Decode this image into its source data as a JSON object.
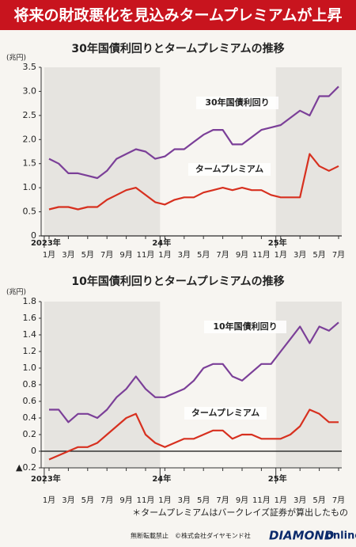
{
  "header": {
    "title": "将来の財政悪化を見込みタームプレミアムが上昇"
  },
  "chart_data": [
    {
      "type": "line",
      "title": "30年国債利回りとタームプレミアムの推移",
      "y_label": "(兆円)",
      "x": [
        "2023-01",
        "2023-02",
        "2023-03",
        "2023-04",
        "2023-05",
        "2023-06",
        "2023-07",
        "2023-08",
        "2023-09",
        "2023-10",
        "2023-11",
        "2023-12",
        "2024-01",
        "2024-02",
        "2024-03",
        "2024-04",
        "2024-05",
        "2024-06",
        "2024-07",
        "2024-08",
        "2024-09",
        "2024-10",
        "2024-11",
        "2024-12",
        "2025-01",
        "2025-02",
        "2025-03",
        "2025-04",
        "2025-05",
        "2025-06",
        "2025-07"
      ],
      "series": [
        {
          "name": "30年国債利回り",
          "color": "#7b3f98",
          "values": [
            1.6,
            1.5,
            1.3,
            1.3,
            1.25,
            1.2,
            1.35,
            1.6,
            1.7,
            1.8,
            1.75,
            1.6,
            1.65,
            1.8,
            1.8,
            1.95,
            2.1,
            2.2,
            2.2,
            1.9,
            1.9,
            2.05,
            2.2,
            2.25,
            2.3,
            2.45,
            2.6,
            2.5,
            2.9,
            2.9,
            3.1
          ]
        },
        {
          "name": "タームプレミアム",
          "color": "#d7301f",
          "values": [
            0.55,
            0.6,
            0.6,
            0.55,
            0.6,
            0.6,
            0.75,
            0.85,
            0.95,
            1.0,
            0.85,
            0.7,
            0.65,
            0.75,
            0.8,
            0.8,
            0.9,
            0.95,
            1.0,
            0.95,
            1.0,
            0.95,
            0.95,
            0.85,
            0.8,
            0.8,
            0.8,
            1.7,
            1.45,
            1.35,
            1.45
          ]
        }
      ],
      "ylim": [
        0,
        3.5
      ],
      "yticks": [
        {
          "value": 3.5,
          "label": "3.5"
        },
        {
          "value": 3,
          "label": "3.0"
        },
        {
          "value": 2.5,
          "label": "2.5"
        },
        {
          "value": 2,
          "label": "2.0"
        },
        {
          "value": 1.5,
          "label": "1.5"
        },
        {
          "value": 1,
          "label": "1.0"
        },
        {
          "value": 0.5,
          "label": "0.5"
        },
        0
      ],
      "xticks": [
        {
          "value": "2023-01",
          "label": "1月"
        },
        {
          "value": "2023-03",
          "label": "3月"
        },
        {
          "value": "2023-05",
          "label": "5月"
        },
        {
          "value": "2023-07",
          "label": "7月"
        },
        {
          "value": "2023-09",
          "label": "9月"
        },
        {
          "value": "2023-11",
          "label": "11月"
        },
        {
          "value": "2024-01",
          "label": "1月"
        },
        {
          "value": "2024-03",
          "label": "3月"
        },
        {
          "value": "2024-05",
          "label": "5月"
        },
        {
          "value": "2024-07",
          "label": "7月"
        },
        {
          "value": "2024-09",
          "label": "9月"
        },
        {
          "value": "2024-11",
          "label": "11月"
        },
        {
          "value": "2025-01",
          "label": "1月"
        },
        {
          "value": "2025-03",
          "label": "3月"
        },
        {
          "value": "2025-05",
          "label": "5月"
        },
        {
          "value": "2025-07",
          "label": "7月"
        }
      ],
      "year_labels": [
        {
          "value": "2023-01",
          "label": "2023年"
        },
        {
          "value": "2024-01",
          "label": "24年"
        },
        {
          "value": "2025-01",
          "label": "25年"
        }
      ],
      "grid": false
    },
    {
      "type": "line",
      "title": "10年国債利回りとタームプレミアムの推移",
      "y_label": "(兆円)",
      "x": [
        "2023-01",
        "2023-02",
        "2023-03",
        "2023-04",
        "2023-05",
        "2023-06",
        "2023-07",
        "2023-08",
        "2023-09",
        "2023-10",
        "2023-11",
        "2023-12",
        "2024-01",
        "2024-02",
        "2024-03",
        "2024-04",
        "2024-05",
        "2024-06",
        "2024-07",
        "2024-08",
        "2024-09",
        "2024-10",
        "2024-11",
        "2024-12",
        "2025-01",
        "2025-02",
        "2025-03",
        "2025-04",
        "2025-05",
        "2025-06",
        "2025-07"
      ],
      "series": [
        {
          "name": "10年国債利回り",
          "color": "#7b3f98",
          "values": [
            0.5,
            0.5,
            0.35,
            0.45,
            0.45,
            0.4,
            0.5,
            0.65,
            0.75,
            0.9,
            0.75,
            0.65,
            0.65,
            0.7,
            0.75,
            0.85,
            1.0,
            1.05,
            1.05,
            0.9,
            0.85,
            0.95,
            1.05,
            1.05,
            1.2,
            1.35,
            1.5,
            1.3,
            1.5,
            1.45,
            1.55
          ]
        },
        {
          "name": "タームプレミアム",
          "color": "#d7301f",
          "values": [
            -0.1,
            -0.05,
            0.0,
            0.05,
            0.05,
            0.1,
            0.2,
            0.3,
            0.4,
            0.45,
            0.2,
            0.1,
            0.05,
            0.1,
            0.15,
            0.15,
            0.2,
            0.25,
            0.25,
            0.15,
            0.2,
            0.2,
            0.15,
            0.15,
            0.15,
            0.2,
            0.3,
            0.5,
            0.45,
            0.35,
            0.35
          ]
        }
      ],
      "ylim": [
        -0.2,
        1.8
      ],
      "yticks": [
        {
          "value": 1.8,
          "label": "1.8"
        },
        {
          "value": 1.6,
          "label": "1.6"
        },
        {
          "value": 1.4,
          "label": "1.4"
        },
        {
          "value": 1.2,
          "label": "1.2"
        },
        {
          "value": 1,
          "label": "1.0"
        },
        {
          "value": 0.8,
          "label": "0.8"
        },
        {
          "value": 0.6,
          "label": "0.6"
        },
        {
          "value": 0.4,
          "label": "0.4"
        },
        {
          "value": 0.2,
          "label": "0.2"
        },
        0,
        {
          "value": -0.2,
          "label": "▲0.2"
        }
      ],
      "xticks": [
        {
          "value": "2023-01",
          "label": "1月"
        },
        {
          "value": "2023-03",
          "label": "3月"
        },
        {
          "value": "2023-05",
          "label": "5月"
        },
        {
          "value": "2023-07",
          "label": "7月"
        },
        {
          "value": "2023-09",
          "label": "9月"
        },
        {
          "value": "2023-11",
          "label": "11月"
        },
        {
          "value": "2024-01",
          "label": "1月"
        },
        {
          "value": "2024-03",
          "label": "3月"
        },
        {
          "value": "2024-05",
          "label": "5月"
        },
        {
          "value": "2024-07",
          "label": "7月"
        },
        {
          "value": "2024-09",
          "label": "9月"
        },
        {
          "value": "2024-11",
          "label": "11月"
        },
        {
          "value": "2025-01",
          "label": "1月"
        },
        {
          "value": "2025-03",
          "label": "3月"
        },
        {
          "value": "2025-05",
          "label": "5月"
        },
        {
          "value": "2025-07",
          "label": "7月"
        }
      ],
      "year_labels": [
        {
          "value": "2023-01",
          "label": "2023年"
        },
        {
          "value": "2024-01",
          "label": "24年"
        },
        {
          "value": "2025-01",
          "label": "25年"
        }
      ],
      "grid": false
    }
  ],
  "footnote": "＊タームプレミアムはバークレイズ証券が算出したもの",
  "credit": "無断転載禁止　©株式会社ダイヤモンド社",
  "logo": {
    "brand": "DIAMOND",
    "suffix": "online"
  }
}
